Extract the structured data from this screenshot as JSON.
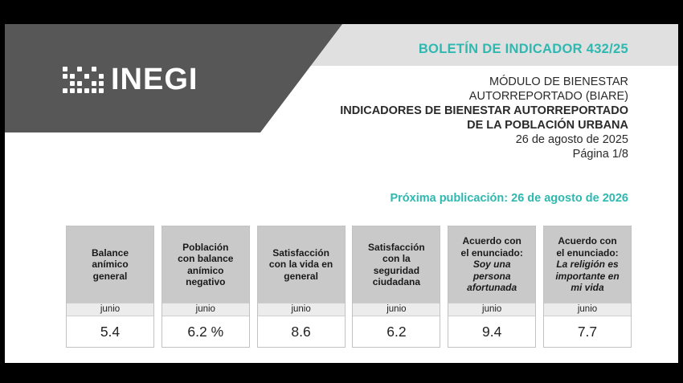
{
  "logo": {
    "text": "INEGI"
  },
  "bulletin": "BOLETÍN DE INDICADOR 432/25",
  "header": {
    "line1": "MÓDULO DE BIENESTAR",
    "line2": "AUTORREPORTADO (BIARE)",
    "line3": "INDICADORES DE BIENESTAR AUTORREPORTADO",
    "line4": "DE LA POBLACIÓN URBANA",
    "date": "26 de agosto de 2025",
    "page": "Página 1/8"
  },
  "next_publication": "Próxima publicación: 26 de agosto de 2026",
  "indicators": [
    {
      "lines": [
        "Balance",
        "anímico",
        "general"
      ],
      "italic_lines": [],
      "period": "junio",
      "value": "5.4"
    },
    {
      "lines": [
        "Población",
        "con balance",
        "anímico",
        "negativo"
      ],
      "italic_lines": [],
      "period": "junio",
      "value": "6.2 %"
    },
    {
      "lines": [
        "Satisfacción",
        "con la vida en",
        "general"
      ],
      "italic_lines": [],
      "period": "junio",
      "value": "8.6"
    },
    {
      "lines": [
        "Satisfacción",
        "con la",
        "seguridad",
        "ciudadana"
      ],
      "italic_lines": [],
      "period": "junio",
      "value": "6.2"
    },
    {
      "lines": [
        "Acuerdo con",
        "el enunciado:"
      ],
      "italic_lines": [
        "Soy una",
        "persona",
        "afortunada"
      ],
      "period": "junio",
      "value": "9.4"
    },
    {
      "lines": [
        "Acuerdo con",
        "el enunciado:"
      ],
      "italic_lines": [
        "La religión es",
        "importante en",
        "mi vida"
      ],
      "period": "junio",
      "value": "7.7"
    }
  ]
}
